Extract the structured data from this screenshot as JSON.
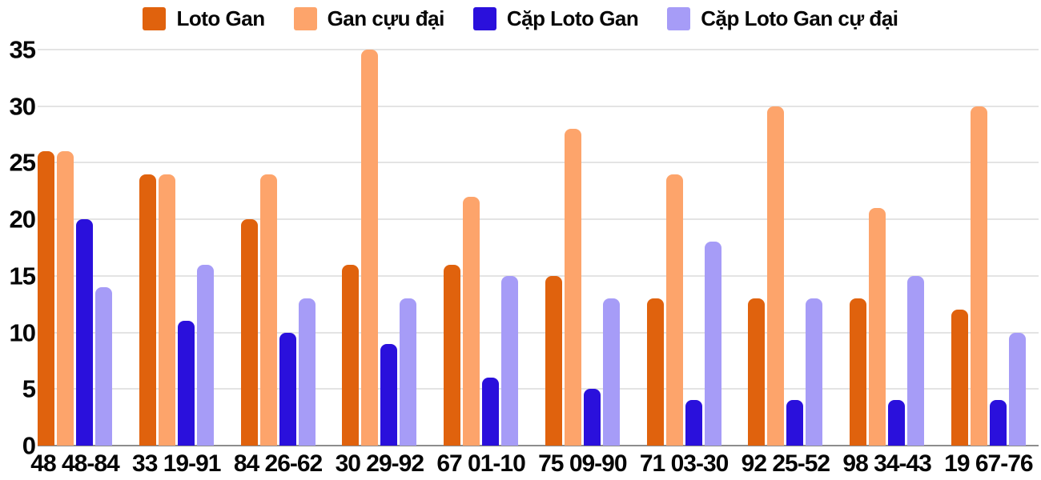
{
  "legend": [
    {
      "label": "Loto Gan",
      "color": "#e0620d",
      "swatch_icon": "square-swatch-icon"
    },
    {
      "label": "Gan cựu đại",
      "color": "#fda46b",
      "swatch_icon": "square-swatch-icon"
    },
    {
      "label": "Cặp Loto Gan",
      "color": "#2a10dc",
      "swatch_icon": "square-swatch-icon"
    },
    {
      "label": "Cặp Loto Gan cự đại",
      "color": "#a69cf7",
      "swatch_icon": "square-swatch-icon"
    }
  ],
  "chart_data": {
    "type": "bar",
    "title": "",
    "xlabel": "",
    "ylabel": "",
    "categories": [
      "48 48-84",
      "33 19-91",
      "84 26-62",
      "30 29-92",
      "67 01-10",
      "75 09-90",
      "71 03-30",
      "92 25-52",
      "98 34-43",
      "19 67-76"
    ],
    "series": [
      {
        "name": "Loto Gan",
        "color": "#e0620d",
        "values": [
          26,
          24,
          20,
          16,
          16,
          15,
          13,
          13,
          13,
          12
        ]
      },
      {
        "name": "Gan cựu đại",
        "color": "#fda46b",
        "values": [
          26,
          24,
          24,
          35,
          22,
          28,
          24,
          30,
          21,
          30
        ]
      },
      {
        "name": "Cặp Loto Gan",
        "color": "#2a10dc",
        "values": [
          20,
          11,
          10,
          9,
          6,
          5,
          4,
          4,
          4,
          4
        ]
      },
      {
        "name": "Cặp Loto Gan cự đại",
        "color": "#a69cf7",
        "values": [
          14,
          16,
          13,
          13,
          15,
          13,
          18,
          13,
          15,
          10
        ]
      }
    ],
    "ylim": [
      0,
      35
    ],
    "yticks": [
      0,
      5,
      10,
      15,
      20,
      25,
      30,
      35
    ],
    "grid": true,
    "legend_position": "top",
    "gridline_color": "#e4e4e4",
    "baseline_color": "#8d8d8d",
    "text_color": "#060606"
  }
}
